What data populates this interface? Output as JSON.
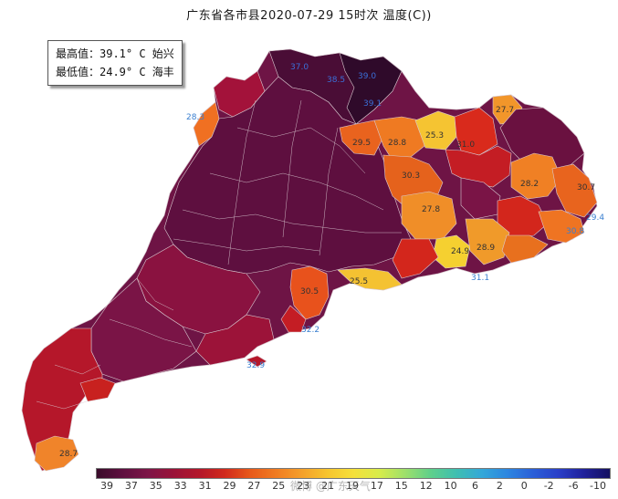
{
  "title": "广东省各市县2020-07-29 15时次 温度(C))",
  "stats": {
    "max_label": "最高值：39.1° C  始兴",
    "min_label": "最低值：24.9° C  海丰"
  },
  "map_labels": [
    {
      "id": "l1",
      "text": "37.0",
      "color": "#3a6fd8"
    },
    {
      "id": "l2",
      "text": "38.5",
      "color": "#3a6fd8"
    },
    {
      "id": "l3",
      "text": "39.0",
      "color": "#3a6fd8"
    },
    {
      "id": "l4",
      "text": "39.1",
      "color": "#3a6fd8"
    },
    {
      "id": "l5",
      "text": "28.3",
      "color": "#3a7fd0"
    },
    {
      "id": "l6",
      "text": "27.7",
      "color": "#333333"
    },
    {
      "id": "l7",
      "text": "29.5",
      "color": "#333333"
    },
    {
      "id": "l8",
      "text": "28.8",
      "color": "#333333"
    },
    {
      "id": "l9",
      "text": "25.3",
      "color": "#333333"
    },
    {
      "id": "l10",
      "text": "31.0",
      "color": "#333333"
    },
    {
      "id": "l11",
      "text": "30.3",
      "color": "#333333"
    },
    {
      "id": "l12",
      "text": "28.2",
      "color": "#333333"
    },
    {
      "id": "l13",
      "text": "30.7",
      "color": "#333333"
    },
    {
      "id": "l14",
      "text": "27.8",
      "color": "#333333"
    },
    {
      "id": "l15",
      "text": "29.4",
      "color": "#3a7fd0"
    },
    {
      "id": "l16",
      "text": "30.8",
      "color": "#3a7fd0"
    },
    {
      "id": "l17",
      "text": "24.9",
      "color": "#333333"
    },
    {
      "id": "l18",
      "text": "28.9",
      "color": "#333333"
    },
    {
      "id": "l19",
      "text": "31.1",
      "color": "#3a7fd0"
    },
    {
      "id": "l20",
      "text": "25.5",
      "color": "#333333"
    },
    {
      "id": "l21",
      "text": "30.5",
      "color": "#333333"
    },
    {
      "id": "l22",
      "text": "32.2",
      "color": "#3a7fd0"
    },
    {
      "id": "l23",
      "text": "32.9",
      "color": "#3a7fd0"
    },
    {
      "id": "l24",
      "text": "28.7",
      "color": "#333333"
    }
  ],
  "legend": {
    "ticks": [
      "39",
      "37",
      "35",
      "33",
      "31",
      "29",
      "27",
      "25",
      "23",
      "21",
      "19",
      "17",
      "15",
      "12",
      "10",
      "6",
      "2",
      "0",
      "-2",
      "-6",
      "-10"
    ],
    "colors": [
      "#3a0c2a",
      "#5e0f3f",
      "#7d1547",
      "#9a1238",
      "#b3162a",
      "#d12a1c",
      "#e85a1a",
      "#f07c22",
      "#f5a02a",
      "#f7c52e",
      "#f5e03a",
      "#d8ec4a",
      "#9fe06a",
      "#5fd08a",
      "#3fbfb0",
      "#34a8d8",
      "#2d86e0",
      "#2a5fd8",
      "#2a3fc8",
      "#20209a",
      "#141060"
    ]
  },
  "watermark": "微博 @广东天气"
}
